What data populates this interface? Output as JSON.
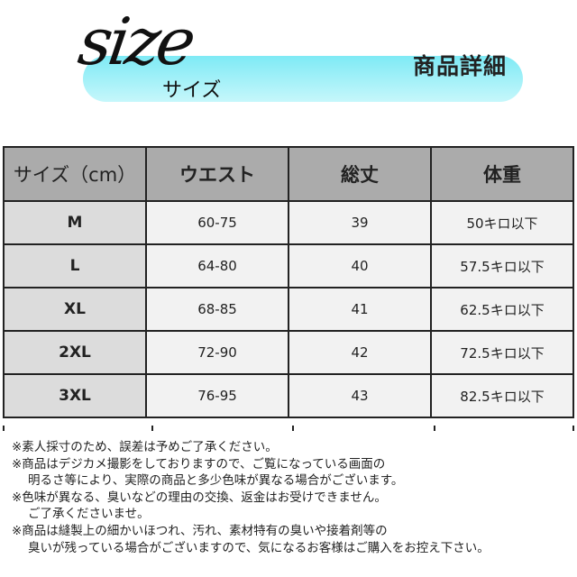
{
  "header": {
    "logo_text": "size",
    "logo_kana": "サイズ",
    "title": "商品詳細",
    "banner_color": "#7eeaf5"
  },
  "table": {
    "columns": [
      "サイズ（cm）",
      "ウエスト",
      "総丈",
      "体重"
    ],
    "rows": [
      {
        "size": "M",
        "waist": "60-75",
        "length": "39",
        "weight": "50キロ以下"
      },
      {
        "size": "L",
        "waist": "64-80",
        "length": "40",
        "weight": "57.5キロ以下"
      },
      {
        "size": "XL",
        "waist": "68-85",
        "length": "41",
        "weight": "62.5キロ以下"
      },
      {
        "size": "2XL",
        "waist": "72-90",
        "length": "42",
        "weight": "72.5キロ以下"
      },
      {
        "size": "3XL",
        "waist": "76-95",
        "length": "43",
        "weight": "82.5キロ以下"
      }
    ]
  },
  "notes": [
    "※素人採寸のため、誤差は予めご了承ください。",
    "※商品はデジカメ撮影をしておりますので、ご覧になっている画面の",
    "明るさ等により、実際の商品と多少色味が異なる場合がございます。",
    "※色味が異なる、臭いなどの理由の交換、返金はお受けできません。",
    "ご了承くださいませ。",
    "※商品は縫製上の細かいほつれ、汚れ、素材特有の臭いや接着剤等の",
    "臭いが残っている場合がございますので、気になるお客様はご購入をお控え下さい。"
  ]
}
